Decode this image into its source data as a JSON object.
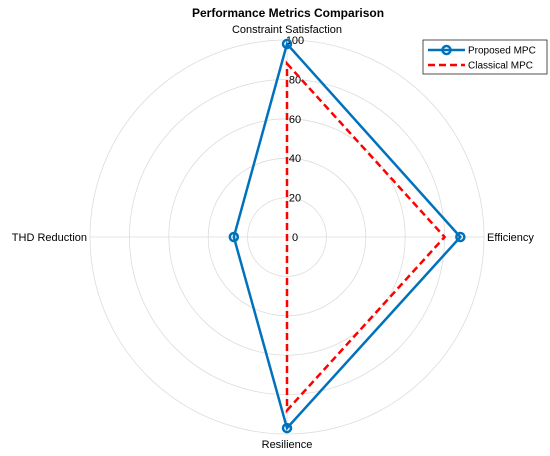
{
  "chart_data": {
    "type": "radar",
    "title": "Performance Metrics Comparison",
    "axes": [
      "Constraint Satisfaction",
      "Efficiency",
      "Resilience",
      "THD Reduction"
    ],
    "rlim": [
      0,
      100
    ],
    "r_ticks": [
      "0",
      "20",
      "40",
      "60",
      "80",
      "100"
    ],
    "grid": true,
    "legend_position": "top-right",
    "series": [
      {
        "name": "Proposed MPC",
        "values": [
          98,
          88,
          97,
          27
        ],
        "color": "#0072BD",
        "style": "solid",
        "marker": "circle"
      },
      {
        "name": "Classical MPC",
        "values": [
          88,
          80,
          88,
          0
        ],
        "color": "#FF0000",
        "style": "dashed",
        "marker": "none"
      }
    ]
  }
}
